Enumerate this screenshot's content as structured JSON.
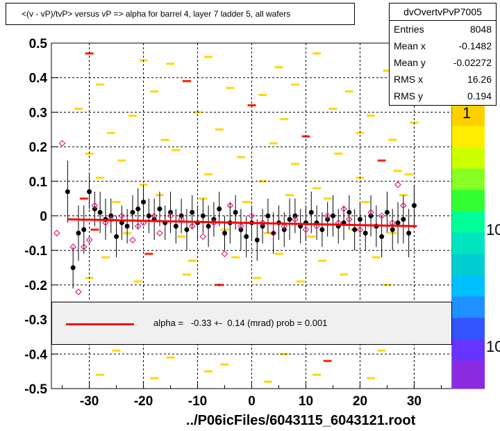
{
  "title": "<(v - vP)/tvP> versus   vP => alpha for barrel 4, layer 7 ladder 5, all wafers",
  "stats": {
    "name": "dvOvertvPvP7005",
    "rows": [
      {
        "label": "Entries",
        "value": "8048"
      },
      {
        "label": "Mean x",
        "value": "-0.1482"
      },
      {
        "label": "Mean y",
        "value": "-0.02272"
      },
      {
        "label": "RMS x",
        "value": "16.26"
      },
      {
        "label": "RMS y",
        "value": "0.194"
      }
    ]
  },
  "footer": "../P06icFiles/6043115_6043121.root",
  "zaxis_labels": [
    "1",
    "10",
    "10"
  ],
  "legend": {
    "text": "alpha =   -0.33 +-  0.14 (mrad) prob = 0.001",
    "line_color": "#ff0000"
  },
  "chart_data": {
    "type": "scatter",
    "xlim": [
      -37,
      37
    ],
    "ylim": [
      -0.5,
      0.5
    ],
    "xticks": [
      -30,
      -20,
      -10,
      0,
      10,
      20,
      30
    ],
    "yticks": [
      -0.5,
      -0.4,
      -0.3,
      -0.2,
      -0.1,
      0,
      0.1,
      0.2,
      0.3,
      0.4,
      0.5
    ],
    "xtick_labels": [
      "-30",
      "-20",
      "-10",
      "0",
      "10",
      "20",
      "30"
    ],
    "ytick_labels": [
      "-0.5",
      "-0.4",
      "-0.3",
      "-0.2",
      "-0.1",
      "0",
      "0.1",
      "0.2",
      "0.3",
      "0.4",
      "0.5"
    ],
    "grid": true,
    "fit_line": {
      "x": [
        -34,
        30.5
      ],
      "y": [
        -0.01,
        -0.03
      ],
      "color": "#ff0000"
    },
    "black_series": {
      "x": [
        -34,
        -33,
        -32,
        -31,
        -30,
        -29,
        -28,
        -27,
        -26,
        -25,
        -24,
        -23,
        -22,
        -21,
        -20,
        -19,
        -18,
        -17,
        -16,
        -15,
        -14,
        -13,
        -12,
        -11,
        -10,
        -9,
        -8,
        -7,
        -6,
        -5,
        -4,
        -3,
        -2,
        -1,
        0,
        1,
        2,
        3,
        4,
        5,
        6,
        7,
        8,
        9,
        10,
        11,
        12,
        13,
        14,
        15,
        16,
        17,
        18,
        19,
        20,
        21,
        22,
        23,
        24,
        25,
        26,
        27,
        28,
        29,
        30
      ],
      "y": [
        0.07,
        -0.15,
        -0.05,
        -0.04,
        0.07,
        0.02,
        0.01,
        -0.01,
        0.0,
        -0.06,
        -0.02,
        -0.03,
        0.01,
        0.02,
        0.04,
        0.0,
        -0.01,
        0.02,
        -0.02,
        0.01,
        -0.03,
        0.0,
        -0.04,
        0.01,
        -0.02,
        0.0,
        -0.03,
        -0.01,
        0.02,
        -0.05,
        -0.02,
        0.01,
        -0.04,
        -0.06,
        -0.02,
        -0.07,
        -0.03,
        0.0,
        -0.05,
        -0.02,
        -0.04,
        -0.01,
        0.0,
        -0.03,
        -0.02,
        0.01,
        -0.02,
        -0.04,
        -0.01,
        0.0,
        -0.03,
        -0.02,
        0.01,
        -0.04,
        -0.01,
        -0.05,
        0.0,
        -0.03,
        -0.06,
        0.01,
        -0.04,
        -0.02,
        -0.01,
        -0.05,
        0.03
      ],
      "err": [
        0.09,
        0.06,
        0.08,
        0.07,
        0.05,
        0.05,
        0.06,
        0.06,
        0.05,
        0.06,
        0.05,
        0.05,
        0.05,
        0.06,
        0.05,
        0.05,
        0.06,
        0.05,
        0.05,
        0.06,
        0.05,
        0.05,
        0.06,
        0.05,
        0.05,
        0.05,
        0.06,
        0.05,
        0.05,
        0.05,
        0.06,
        0.05,
        0.06,
        0.06,
        0.05,
        0.06,
        0.05,
        0.05,
        0.06,
        0.05,
        0.05,
        0.06,
        0.05,
        0.05,
        0.05,
        0.06,
        0.05,
        0.05,
        0.05,
        0.06,
        0.05,
        0.05,
        0.05,
        0.06,
        0.05,
        0.05,
        0.06,
        0.06,
        0.06,
        0.06,
        0.06,
        0.06,
        0.07,
        0.07,
        0.06
      ]
    },
    "pink_series": {
      "x": [
        -36,
        -35,
        -33,
        -32,
        -31,
        -30,
        -29,
        -27,
        -26,
        -24,
        -22,
        -21,
        -20,
        -18,
        -17,
        -15,
        -13,
        -11,
        -9,
        -7,
        -5,
        -4,
        -2,
        0,
        2,
        4,
        6,
        8,
        10,
        12,
        14,
        16,
        17,
        18,
        20,
        22,
        24,
        26,
        27,
        28
      ],
      "y": [
        -0.05,
        0.21,
        -0.09,
        -0.22,
        -0.09,
        -0.07,
        0.03,
        -0.02,
        -0.01,
        0.0,
        -0.07,
        -0.03,
        -0.02,
        0.0,
        -0.05,
        0.0,
        -0.01,
        -0.03,
        -0.06,
        -0.02,
        -0.11,
        0.03,
        -0.03,
        0.0,
        -0.02,
        -0.05,
        -0.03,
        -0.01,
        -0.04,
        -0.03,
        0.0,
        -0.02,
        0.02,
        -0.01,
        -0.04,
        0.01,
        0.0,
        -0.02,
        0.09,
        0.03
      ]
    },
    "heatmap_cells": [
      [
        -30,
        0.47
      ],
      [
        -20,
        0.45
      ],
      [
        -15,
        0.44
      ],
      [
        -8,
        0.46
      ],
      [
        5,
        0.43
      ],
      [
        12,
        0.47
      ],
      [
        25,
        0.42
      ],
      [
        -28,
        0.38
      ],
      [
        -18,
        0.36
      ],
      [
        -12,
        0.39
      ],
      [
        -4,
        0.37
      ],
      [
        2,
        0.35
      ],
      [
        8,
        0.38
      ],
      [
        18,
        0.36
      ],
      [
        28,
        0.39
      ],
      [
        -32,
        0.31
      ],
      [
        -22,
        0.29
      ],
      [
        -10,
        0.3
      ],
      [
        0,
        0.32
      ],
      [
        6,
        0.28
      ],
      [
        15,
        0.31
      ],
      [
        22,
        0.29
      ],
      [
        30,
        0.27
      ],
      [
        -26,
        0.24
      ],
      [
        -16,
        0.22
      ],
      [
        -6,
        0.25
      ],
      [
        4,
        0.21
      ],
      [
        10,
        0.23
      ],
      [
        20,
        0.24
      ],
      [
        26,
        0.22
      ],
      [
        -30,
        0.18
      ],
      [
        -24,
        0.16
      ],
      [
        -14,
        0.19
      ],
      [
        -2,
        0.17
      ],
      [
        8,
        0.15
      ],
      [
        16,
        0.18
      ],
      [
        24,
        0.16
      ],
      [
        29,
        0.12
      ],
      [
        -28,
        0.11
      ],
      [
        -20,
        0.09
      ],
      [
        -8,
        0.12
      ],
      [
        2,
        0.1
      ],
      [
        12,
        0.08
      ],
      [
        20,
        0.11
      ],
      [
        27,
        0.13
      ],
      [
        -31,
        0.05
      ],
      [
        -25,
        0.04
      ],
      [
        -17,
        0.06
      ],
      [
        -9,
        0.05
      ],
      [
        -1,
        0.04
      ],
      [
        7,
        0.06
      ],
      [
        14,
        0.05
      ],
      [
        21,
        0.04
      ],
      [
        28,
        0.06
      ],
      [
        -29,
        -0.04
      ],
      [
        -23,
        -0.05
      ],
      [
        -13,
        -0.06
      ],
      [
        -5,
        -0.04
      ],
      [
        3,
        -0.05
      ],
      [
        11,
        -0.06
      ],
      [
        19,
        -0.04
      ],
      [
        26,
        -0.05
      ],
      [
        -27,
        -0.12
      ],
      [
        -19,
        -0.11
      ],
      [
        -11,
        -0.13
      ],
      [
        -3,
        -0.12
      ],
      [
        5,
        -0.11
      ],
      [
        13,
        -0.13
      ],
      [
        23,
        -0.12
      ],
      [
        -30,
        -0.18
      ],
      [
        -21,
        -0.19
      ],
      [
        -12,
        -0.17
      ],
      [
        -6,
        -0.2
      ],
      [
        1,
        -0.18
      ],
      [
        9,
        -0.19
      ],
      [
        17,
        -0.17
      ],
      [
        25,
        -0.2
      ],
      [
        -25,
        -0.39
      ],
      [
        -15,
        -0.41
      ],
      [
        -5,
        -0.43
      ],
      [
        6,
        -0.4
      ],
      [
        14,
        -0.42
      ],
      [
        24,
        -0.39
      ],
      [
        -28,
        -0.46
      ],
      [
        -18,
        -0.47
      ],
      [
        -8,
        -0.45
      ],
      [
        3,
        -0.48
      ],
      [
        12,
        -0.46
      ],
      [
        22,
        -0.47
      ]
    ]
  }
}
